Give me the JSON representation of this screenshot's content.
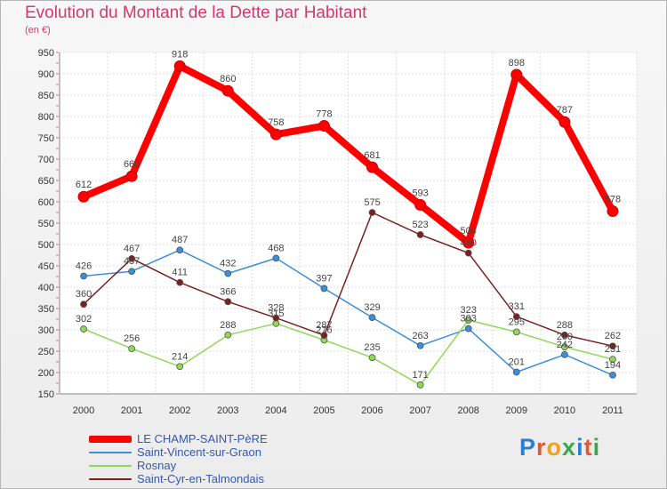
{
  "header": {
    "title": "Evolution du Montant de la Dette par Habitant",
    "subtitle": "(en €)"
  },
  "logo": {
    "text": "Proxiti"
  },
  "chart_data": {
    "type": "line",
    "x": [
      "2000",
      "2001",
      "2002",
      "2003",
      "2004",
      "2005",
      "2006",
      "2007",
      "2008",
      "2009",
      "2010",
      "2011"
    ],
    "yticks": [
      "150",
      "200",
      "250",
      "300",
      "350",
      "400",
      "450",
      "500",
      "550",
      "600",
      "650",
      "700",
      "750",
      "800",
      "850",
      "900",
      "950"
    ],
    "ylim": [
      150,
      950
    ],
    "grid": true,
    "legend_position": "bottom-left",
    "series": [
      {
        "name": "LE CHAMP-SAINT-PèRE",
        "color": "#ff0000",
        "values": [
          612,
          660,
          918,
          860,
          758,
          778,
          681,
          593,
          504,
          898,
          787,
          578
        ],
        "labels": [
          "612",
          "660",
          "918",
          "860",
          "758",
          "778",
          "681",
          "593",
          "504",
          "898",
          "787",
          "578"
        ]
      },
      {
        "name": "Saint-Vincent-sur-Graon",
        "color": "#3a8fd8",
        "values": [
          426,
          437,
          487,
          432,
          468,
          397,
          329,
          263,
          303,
          201,
          242,
          194
        ],
        "labels": [
          "426",
          "437",
          "487",
          "432",
          "468",
          "397",
          "329",
          "263",
          "303",
          "201",
          "242",
          "194"
        ]
      },
      {
        "name": "Rosnay",
        "color": "#8fd85a",
        "values": [
          302,
          256,
          214,
          288,
          315,
          276,
          235,
          171,
          323,
          295,
          260,
          231
        ],
        "labels": [
          "302",
          "256",
          "214",
          "288",
          "315",
          "276",
          "235",
          "171",
          "323",
          "295",
          "260",
          "231"
        ]
      },
      {
        "name": "Saint-Cyr-en-Talmondais",
        "color": "#7a2020",
        "values": [
          360,
          467,
          411,
          366,
          328,
          287,
          575,
          523,
          480,
          331,
          288,
          262
        ],
        "labels": [
          "360",
          "467",
          "411",
          "366",
          "328",
          "287",
          "575",
          "523",
          "480",
          "331",
          "288",
          "262"
        ]
      }
    ]
  }
}
